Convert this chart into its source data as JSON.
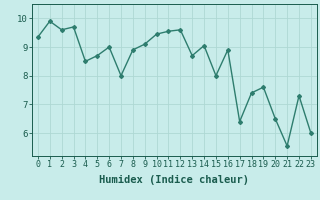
{
  "x": [
    0,
    1,
    2,
    3,
    4,
    5,
    6,
    7,
    8,
    9,
    10,
    11,
    12,
    13,
    14,
    15,
    16,
    17,
    18,
    19,
    20,
    21,
    22,
    23
  ],
  "y": [
    9.35,
    9.9,
    9.6,
    9.7,
    8.5,
    8.7,
    9.0,
    8.0,
    8.9,
    9.1,
    9.45,
    9.55,
    9.6,
    8.7,
    9.05,
    8.0,
    8.9,
    6.4,
    7.4,
    7.6,
    6.5,
    5.55,
    7.3,
    6.0
  ],
  "line_color": "#2e7d6e",
  "marker": "D",
  "markersize": 2.0,
  "linewidth": 1.0,
  "bg_color": "#c8ecea",
  "grid_color": "#aed8d4",
  "xlabel": "Humidex (Indice chaleur)",
  "xlim": [
    -0.5,
    23.5
  ],
  "ylim": [
    5.2,
    10.5
  ],
  "yticks": [
    6,
    7,
    8,
    9,
    10
  ],
  "xticks": [
    0,
    1,
    2,
    3,
    4,
    5,
    6,
    7,
    8,
    9,
    10,
    11,
    12,
    13,
    14,
    15,
    16,
    17,
    18,
    19,
    20,
    21,
    22,
    23
  ],
  "tick_color": "#1a5c4e",
  "xlabel_fontsize": 7.5,
  "tick_fontsize": 6.0,
  "ytick_fontsize": 6.5
}
